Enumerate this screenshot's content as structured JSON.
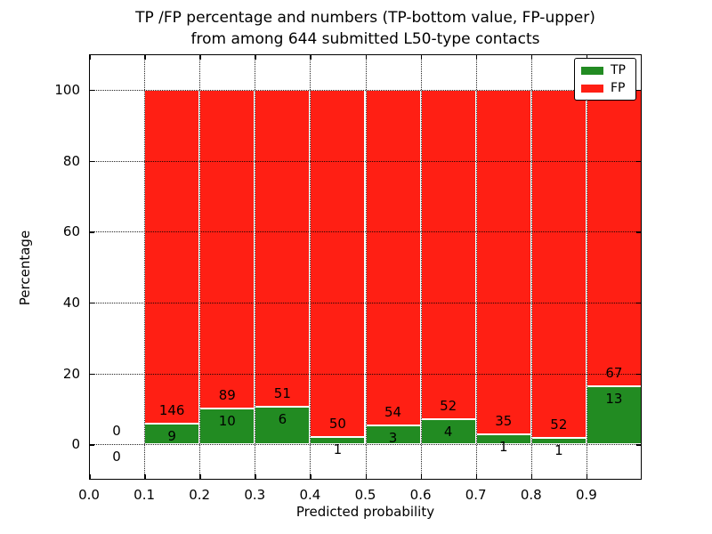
{
  "figure": {
    "title_line1": "TP /FP percentage and numbers (TP-bottom value, FP-upper)",
    "title_line2": "from among 644 submitted L50-type contacts",
    "xlabel": "Predicted probability",
    "ylabel": "Percentage"
  },
  "legend": {
    "position": "upper right",
    "items": [
      {
        "label": "TP",
        "color": "#228b22"
      },
      {
        "label": "FP",
        "color": "#ff1f14"
      }
    ]
  },
  "chart_data": {
    "type": "bar",
    "subtype": "stacked-percentage",
    "title": "TP /FP percentage and numbers (TP-bottom value, FP-upper) from among 644 submitted L50-type contacts",
    "xlabel": "Predicted probability",
    "ylabel": "Percentage",
    "xlim": [
      0.0,
      1.0
    ],
    "ylim": [
      -10,
      110
    ],
    "grid": "dotted, drawn above bars",
    "legend_position": "upper right",
    "total_contacts": 644,
    "bin_width": 0.1,
    "xticks": [
      "0.0",
      "0.1",
      "0.2",
      "0.3",
      "0.4",
      "0.5",
      "0.6",
      "0.7",
      "0.8",
      "0.9"
    ],
    "yticks": [
      "0",
      "20",
      "40",
      "60",
      "80",
      "100"
    ],
    "ytick_values": [
      0,
      20,
      40,
      60,
      80,
      100
    ],
    "xtick_values": [
      0.0,
      0.1,
      0.2,
      0.3,
      0.4,
      0.5,
      0.6,
      0.7,
      0.8,
      0.9
    ],
    "note": "Each bar normalized to 100%; green TP segment on bottom, red FP segment on top; counts printed as labels (TP below boundary, FP above boundary)",
    "bins": [
      {
        "range": "0.0-0.1",
        "x0": 0.0,
        "tp": 0,
        "fp": 0
      },
      {
        "range": "0.1-0.2",
        "x0": 0.1,
        "tp": 9,
        "fp": 146
      },
      {
        "range": "0.2-0.3",
        "x0": 0.2,
        "tp": 10,
        "fp": 89
      },
      {
        "range": "0.3-0.4",
        "x0": 0.3,
        "tp": 6,
        "fp": 51
      },
      {
        "range": "0.4-0.5",
        "x0": 0.4,
        "tp": 1,
        "fp": 50
      },
      {
        "range": "0.5-0.6",
        "x0": 0.5,
        "tp": 3,
        "fp": 54
      },
      {
        "range": "0.6-0.7",
        "x0": 0.6,
        "tp": 4,
        "fp": 52
      },
      {
        "range": "0.7-0.8",
        "x0": 0.7,
        "tp": 1,
        "fp": 35
      },
      {
        "range": "0.8-0.9",
        "x0": 0.8,
        "tp": 1,
        "fp": 52
      },
      {
        "range": "0.9-1.0",
        "x0": 0.9,
        "tp": 13,
        "fp": 67
      }
    ],
    "series": [
      {
        "name": "TP",
        "color": "#228b22",
        "counts": [
          0,
          9,
          10,
          6,
          1,
          3,
          4,
          1,
          1,
          13
        ]
      },
      {
        "name": "FP",
        "color": "#ff1f14",
        "counts": [
          0,
          146,
          89,
          51,
          50,
          54,
          52,
          35,
          52,
          67
        ]
      }
    ]
  }
}
